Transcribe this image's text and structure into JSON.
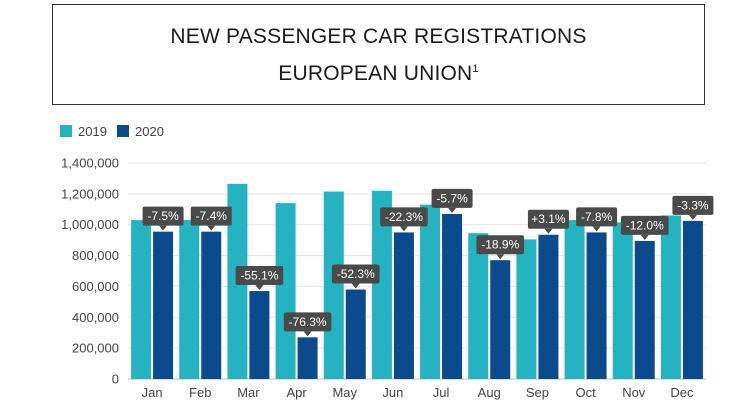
{
  "header": {
    "title_line1": "NEW PASSENGER CAR REGISTRATIONS",
    "title_line2": "EUROPEAN UNION",
    "title_footnote": "1"
  },
  "colors": {
    "series_2019": "#25b3c1",
    "series_2020": "#0b4a8c",
    "label_bg": "#4a4a4a",
    "grid": "#e3e3e3"
  },
  "chart_data": {
    "type": "bar",
    "categories": [
      "Jan",
      "Feb",
      "Mar",
      "Apr",
      "May",
      "Jun",
      "Jul",
      "Aug",
      "Sep",
      "Oct",
      "Nov",
      "Dec"
    ],
    "series": [
      {
        "name": "2019",
        "values": [
          1030000,
          1030000,
          1265000,
          1140000,
          1215000,
          1220000,
          1130000,
          945000,
          905000,
          1030000,
          1015000,
          1060000
        ]
      },
      {
        "name": "2020",
        "values": [
          955000,
          955000,
          570000,
          270000,
          580000,
          950000,
          1070000,
          770000,
          935000,
          950000,
          895000,
          1025000
        ]
      }
    ],
    "change_labels": [
      "-7.5%",
      "-7.4%",
      "-55.1%",
      "-76.3%",
      "-52.3%",
      "-22.3%",
      "-5.7%",
      "-18.9%",
      "+3.1%",
      "-7.8%",
      "-12.0%",
      "-3.3%"
    ],
    "y_ticks": [
      "0",
      "200,000",
      "400,000",
      "600,000",
      "800,000",
      "1,000,000",
      "1,200,000",
      "1,400,000"
    ],
    "ylim": [
      0,
      1400000
    ],
    "legend_position": "top-left",
    "grid": true,
    "title": "NEW PASSENGER CAR REGISTRATIONS EUROPEAN UNION"
  }
}
